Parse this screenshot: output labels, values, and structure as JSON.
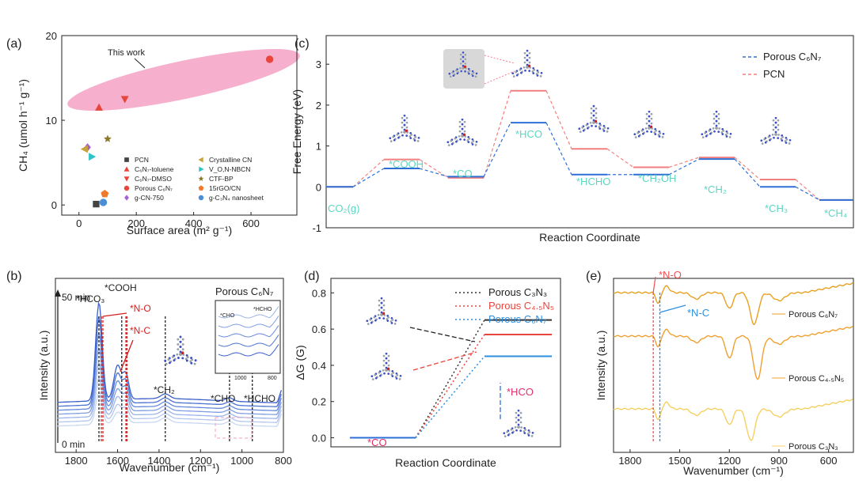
{
  "chart_data": [
    {
      "panel": "(a)",
      "type": "scatter",
      "xlabel": "Surface area (m² g⁻¹)",
      "ylabel": "CH₄ (umol h⁻¹ g⁻¹)",
      "xlim": [
        -60,
        760
      ],
      "ylim": [
        -1.2,
        20
      ],
      "xticks": [
        "0",
        "200",
        "400",
        "600"
      ],
      "yticks": [
        "0",
        "10",
        "20"
      ],
      "annotation": "This work",
      "series": [
        {
          "name": "PCN",
          "marker": "square",
          "color": "#444444",
          "x": 60,
          "y": 0.1
        },
        {
          "name": "C₆N₇-toluene",
          "marker": "triangle-up",
          "color": "#e8453c",
          "x": 70,
          "y": 11.5
        },
        {
          "name": "C₆N₇-DMSO",
          "marker": "triangle-down",
          "color": "#e8453c",
          "x": 160,
          "y": 12.5
        },
        {
          "name": "Porous C₆N₇",
          "marker": "circle",
          "color": "#e8453c",
          "x": 665,
          "y": 17.2
        },
        {
          "name": "g-CN-750",
          "marker": "diamond",
          "color": "#a45fd6",
          "x": 30,
          "y": 6.8
        },
        {
          "name": "Crystalline CN",
          "marker": "triangle-left",
          "color": "#c8a23a",
          "x": 20,
          "y": 6.6
        },
        {
          "name": "V_O,N-NBCN",
          "marker": "triangle-right",
          "color": "#2cc3c9",
          "x": 45,
          "y": 5.7
        },
        {
          "name": "CTF-BP",
          "marker": "star",
          "color": "#8a7a2a",
          "x": 100,
          "y": 7.8
        },
        {
          "name": "15rGO/CN",
          "marker": "pentagon",
          "color": "#f07a2a",
          "x": 90,
          "y": 1.3
        },
        {
          "name": "g-C₃N₄ nanosheet",
          "marker": "circle",
          "color": "#4a8fd6",
          "x": 85,
          "y": 0.3
        }
      ]
    },
    {
      "panel": "(b)",
      "type": "line",
      "title": "Porous C₆N₇",
      "xlabel": "Wavenumber (cm⁻¹)",
      "ylabel": "Intensity (a.u.)",
      "xlim": [
        1900,
        800
      ],
      "xticks": [
        "1800",
        "1600",
        "1400",
        "1200",
        "1000",
        "800"
      ],
      "time_labels": [
        "50 min",
        "0 min"
      ],
      "annotations": [
        "*HCO₃",
        "*COOH",
        "*N-O",
        "*N-C",
        "*CH₂",
        "*CHO",
        "*HCHO"
      ],
      "inset": {
        "labels": [
          "*HCHO",
          "*CHO"
        ],
        "xticks": [
          "1000",
          "800"
        ]
      },
      "series_count": 7,
      "peak_positions": [
        1690,
        1580,
        1370,
        1060,
        950
      ]
    },
    {
      "panel": "(c)",
      "type": "line",
      "xlabel": "Reaction Coordinate",
      "ylabel": "Free Energy (eV)",
      "ylim": [
        -1,
        3.7
      ],
      "yticks": [
        "-1",
        "0",
        "1",
        "2",
        "3"
      ],
      "steps": [
        "CO₂(g)",
        "*COOH",
        "*CO",
        "*HCO",
        "*HCHO",
        "*CH₂OH",
        "*CH₂",
        "*CH₃",
        "*CH₄"
      ],
      "series": [
        {
          "name": "Porous C₆N₇",
          "color": "#2e6fd6",
          "values": [
            0.0,
            0.45,
            0.25,
            1.57,
            0.3,
            0.3,
            0.68,
            0.0,
            -0.32
          ]
        },
        {
          "name": "PCN",
          "color": "#f08080",
          "values": [
            0.0,
            0.67,
            0.22,
            2.35,
            0.93,
            0.48,
            0.72,
            0.18,
            -0.32
          ]
        }
      ]
    },
    {
      "panel": "(d)",
      "type": "line",
      "xlabel": "Reaction Coordinate",
      "ylabel": "ΔG (G)",
      "ylim": [
        -0.05,
        0.88
      ],
      "yticks": [
        "0.0",
        "0.2",
        "0.4",
        "0.6",
        "0.8"
      ],
      "steps": [
        "*CO",
        "*HCO"
      ],
      "series": [
        {
          "name": "Porous C₃N₃",
          "color": "#333333",
          "values": [
            0.0,
            0.65
          ]
        },
        {
          "name": "Porous C₄.₅N₅",
          "color": "#e8453c",
          "values": [
            0.0,
            0.57
          ]
        },
        {
          "name": "Porous C₆N₇",
          "color": "#2e8fe0",
          "values": [
            0.0,
            0.45
          ]
        }
      ]
    },
    {
      "panel": "(e)",
      "type": "line",
      "xlabel": "Wavenumber (cm⁻¹)",
      "ylabel": "Intensity (a.u.)",
      "xlim": [
        1900,
        450
      ],
      "xticks": [
        "1800",
        "1500",
        "1200",
        "900",
        "600"
      ],
      "annotations": [
        "*N-O",
        "*N-C"
      ],
      "series": [
        {
          "name": "Porous C₆N₇",
          "color": "#e8a020"
        },
        {
          "name": "Porous C₄.₅N₅",
          "color": "#f0a030"
        },
        {
          "name": "Porous C₃N₃",
          "color": "#f5d060"
        }
      ]
    }
  ]
}
